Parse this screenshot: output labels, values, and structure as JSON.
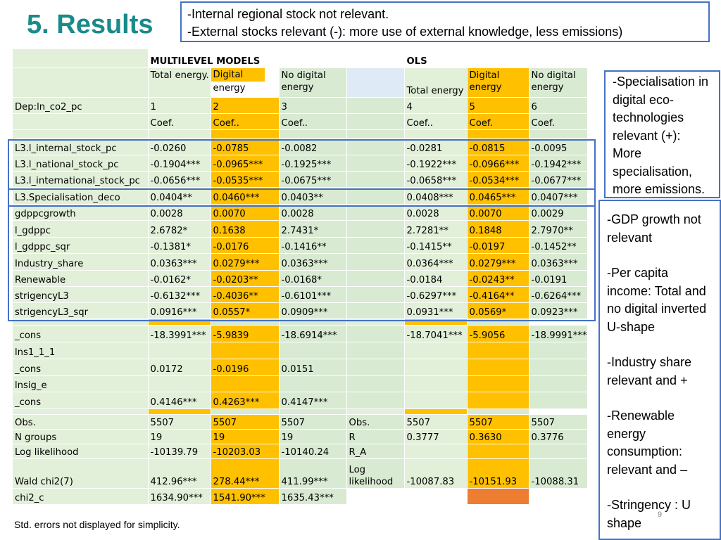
{
  "title": "5. Results",
  "top_note": [
    "-Internal regional stock not relevant.",
    "-External stocks relevant (-): more use of external knowledge, less emissions)"
  ],
  "table": {
    "header": {
      "multilevel_label": "MULTILEVEL MODELS",
      "ols_label": "OLS",
      "col_total_energy": "Total energy.",
      "col_digital_a": "Digital",
      "col_digital_b": "energy",
      "col_nodigital_a": "No digital",
      "col_nodigital_b": "energy",
      "col_ols_total": "Total energy",
      "col_ols_digital_a": "Digital",
      "col_ols_digital_b": "energy",
      "col_ols_nodigital_a": "No digital",
      "col_ols_nodigital_b": "energy",
      "dep_label": "Dep:ln_co2_pc",
      "nums": [
        "1",
        "2",
        "3",
        "4",
        "5",
        "6"
      ],
      "coef": [
        "Coef.",
        "Coef..",
        "Coef..",
        "Coef..",
        "Coef.",
        "Coef."
      ]
    },
    "rows": [
      {
        "label": "L3.l_internal_stock_pc",
        "v": [
          "-0.0260",
          "-0.0785",
          "-0.0082",
          "-0.0281",
          "-0.0815",
          "-0.0095"
        ]
      },
      {
        "label": "L3.l_national_stock_pc",
        "v": [
          "-0.1904***",
          "-0.0965***",
          "-0.1925***",
          "-0.1922***",
          "-0.0966***",
          "-0.1942***"
        ]
      },
      {
        "label": "L3.l_international_stock_pc",
        "v": [
          "-0.0656***",
          "-0.0535***",
          "-0.0675***",
          "-0.0658***",
          "-0.0534***",
          "-0.0677***"
        ]
      },
      {
        "label": "L3.Specialisation_deco",
        "v": [
          "0.0404**",
          "0.0460***",
          "0.0403**",
          "0.0408***",
          "0.0465***",
          "0.0407***"
        ]
      },
      {
        "label": "gdppcgrowth",
        "v": [
          "0.0028",
          "0.0070",
          "0.0028",
          "0.0028",
          "0.0070",
          "0.0029"
        ]
      },
      {
        "label": "l_gdppc",
        "v": [
          "2.6782*",
          "0.1638",
          "2.7431*",
          "2.7281**",
          "0.1848",
          "2.7970**"
        ]
      },
      {
        "label": "l_gdppc_sqr",
        "v": [
          "-0.1381*",
          "-0.0176",
          "-0.1416**",
          "-0.1415**",
          "-0.0197",
          "-0.1452**"
        ]
      },
      {
        "label": "Industry_share",
        "v": [
          "0.0363***",
          "0.0279***",
          "0.0363***",
          "0.0364***",
          "0.0279***",
          "0.0363***"
        ]
      },
      {
        "label": "Renewable",
        "v": [
          "-0.0162*",
          "-0.0203**",
          "-0.0168*",
          "-0.0184",
          "-0.0243**",
          "-0.0191"
        ]
      },
      {
        "label": "strigencyL3",
        "v": [
          "-0.6132***",
          "-0.4036**",
          "-0.6101***",
          "-0.6297***",
          "-0.4164**",
          "-0.6264***"
        ]
      },
      {
        "label": "strigencyL3_sqr",
        "v": [
          "0.0916***",
          "0.0557*",
          "0.0909***",
          "0.0931***",
          "0.0569*",
          "0.0923***"
        ]
      },
      {
        "label": "_cons",
        "v": [
          "-18.3991***",
          "-5.9839",
          "-18.6914***",
          "-18.7041***",
          "-5.9056",
          "-18.9991***"
        ]
      }
    ],
    "lns_label": "lns1_1_1",
    "cons2": {
      "label": "_cons",
      "v": [
        "0.0172",
        "-0.0196",
        "0.0151"
      ]
    },
    "lnsig_label": "lnsig_e",
    "cons3": {
      "label": "_cons",
      "v": [
        "0.4146***",
        "0.4263***",
        "0.4147***"
      ]
    },
    "obs": {
      "label": "Obs.",
      "v": [
        "5507",
        "5507",
        "5507"
      ],
      "ols_label": "Obs.",
      "ols_v": [
        "5507",
        "5507",
        "5507"
      ]
    },
    "ngroups": {
      "label": "N groups",
      "v": [
        "19",
        "19",
        "19"
      ],
      "ols_label": "R",
      "ols_v": [
        "0.3777",
        "0.3630",
        "0.3776"
      ]
    },
    "loglik": {
      "label": "Log likelihood",
      "v": [
        "-10139.79",
        "-10203.03",
        "-10140.24"
      ],
      "ols_label": "R_A"
    },
    "wald": {
      "label": "Wald chi2(7)",
      "v": [
        "412.96***",
        "278.44***",
        "411.99***"
      ],
      "ols_label_a": "Log",
      "ols_label_b": "likelihood",
      "ols_v": [
        "-10087.83",
        "-10151.93",
        "-10088.31"
      ]
    },
    "chi2c": {
      "label": "chi2_c",
      "v": [
        "1634.90***",
        "1541.90***",
        "1635.43***"
      ]
    }
  },
  "side_note_1": "-Specialisation in digital eco-technologies relevant (+): More specialisation, more emissions.",
  "side_note_2": {
    "gdp": "-GDP growth not relevant",
    "income": "-Per capita income: Total and no digital inverted U-shape",
    "industry": "-Industry share relevant and +",
    "renewable": "-Renewable energy consumption: relevant and –",
    "stringency": "-Stringency : U shape"
  },
  "footnote": "Std. errors not displayed for simplicity.",
  "page_number": "9",
  "colors": {
    "title": "#1a8a8a",
    "box_border": "#4472c4",
    "green": "#d9ead3",
    "orange": "#ffc000",
    "dark_orange": "#ed7d31",
    "light_blue": "#deebf7"
  }
}
